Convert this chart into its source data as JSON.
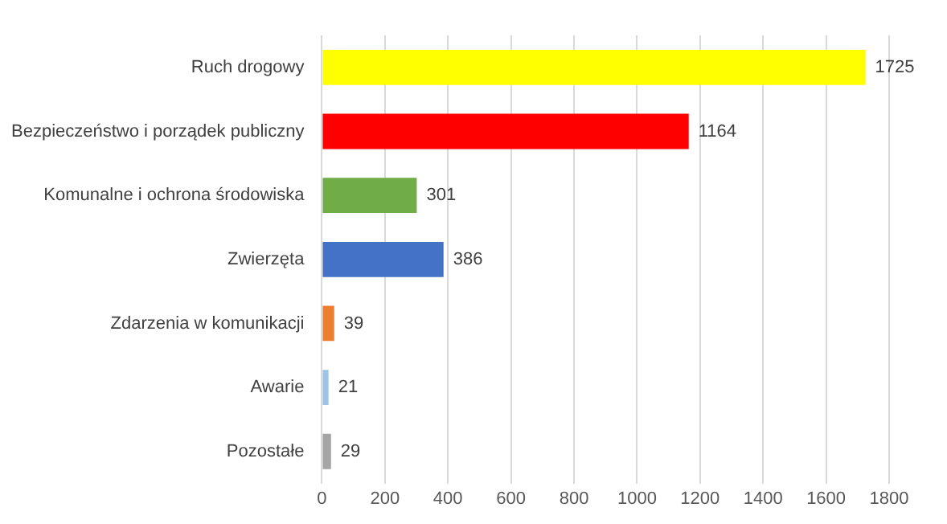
{
  "chart_data": {
    "type": "bar",
    "orientation": "horizontal",
    "categories": [
      "Ruch drogowy",
      "Bezpieczeństwo i porządek publiczny",
      "Komunalne i ochrona środowiska",
      "Zwierzęta",
      "Zdarzenia w komunikacji",
      "Awarie",
      "Pozostałe"
    ],
    "values": [
      1725,
      1164,
      301,
      386,
      39,
      21,
      29
    ],
    "colors": [
      "#ffff00",
      "#ff0000",
      "#70ad47",
      "#4472c4",
      "#ed7d31",
      "#9dc3e6",
      "#a5a5a5"
    ],
    "xlim": [
      0,
      1800
    ],
    "xticks": [
      0,
      200,
      400,
      600,
      800,
      1000,
      1200,
      1400,
      1600,
      1800
    ],
    "grid": "x",
    "data_labels": true
  }
}
